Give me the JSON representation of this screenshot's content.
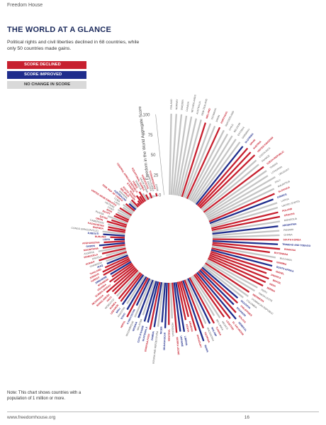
{
  "header": {
    "label": "Freedom House"
  },
  "title": "THE WORLD AT A GLANCE",
  "subtitle": "Political rights and civil liberties declined in 68 countries, while only 50 countries made gains.",
  "legend": {
    "declined": "SCORE DECLINED",
    "improved": "SCORE IMPROVED",
    "no_change": "NO CHANGE IN SCORE"
  },
  "colors": {
    "declined": "#c7202f",
    "improved": "#1f2d8c",
    "no_change": "#c4c4c4"
  },
  "note": "Note: This chart shows countries with a population of 1 million or more.",
  "footer": {
    "url": "www.freedomhouse.org",
    "page_number": "16"
  },
  "chart_data": {
    "type": "bar",
    "subtype": "radial",
    "ylabel": "Freedom in the World Aggregate Score",
    "ylim": [
      0,
      100
    ],
    "yticks": [
      "0",
      "25",
      "50",
      "75",
      "100"
    ],
    "categories": [
      "FINLAND",
      "NORWAY",
      "SWEDEN",
      "CANADA",
      "NETHERLANDS",
      "AUSTRALIA",
      "NEW ZEALAND",
      "IRELAND",
      "DENMARK",
      "JAPAN",
      "PORTUGAL",
      "SWITZERLAND",
      "CHILE",
      "BELGIUM",
      "ESTONIA",
      "GERMANY",
      "SLOVENIA",
      "SPAIN",
      "AUSTRIA",
      "UNITED KINGDOM",
      "COSTA RICA",
      "FRANCE",
      "CZECH REPUBLIC",
      "TAIWAN",
      "LITHUANIA",
      "URUGUAY",
      "ITALY",
      "MAURITIUS",
      "SLOVAKIA",
      "GREECE",
      "LATVIA",
      "UNITED STATES",
      "POLAND",
      "CROATIA",
      "MONGOLIA",
      "ARGENTINA",
      "PANAMA",
      "GHANA",
      "SOUTH KOREA",
      "TRINIDAD AND TOBAGO",
      "ROMANIA",
      "BOTSWANA",
      "BULGARIA",
      "NAMIBIA",
      "SOUTH AFRICA",
      "ISRAEL",
      "JAMAICA",
      "BRAZIL",
      "INDIA",
      "SERBIA",
      "PERU",
      "TIMOR-LESTE",
      "INDONESIA",
      "DOMINICAN REPUBLIC",
      "COLOMBIA",
      "MOLDOVA",
      "PHILIPPINES",
      "ECUADOR",
      "BOLIVIA",
      "SENEGAL",
      "EL SALVADOR",
      "LESOTHO",
      "MEXICO",
      "SRI LANKA",
      "TUNISIA",
      "MALAWI",
      "MACEDONIA",
      "GEORGIA",
      "BENIN",
      "PARAGUAY",
      "ARMENIA",
      "KENYA",
      "LIBERIA",
      "UKRAINE",
      "SIERRA LEONE",
      "HONDURAS",
      "TANZANIA",
      "MADAGASCAR",
      "NIGER",
      "BOSNIA AND HERZEGOVINA",
      "ZAMBIA",
      "BURKINA FASO",
      "GUATEMALA",
      "COTE D'IVOIRE",
      "MALAYSIA",
      "NIGERIA",
      "MOZAMBIQUE",
      "KYRGYZSTAN",
      "NEPAL",
      "TOGO",
      "PAKISTAN",
      "MALI",
      "LEBANON",
      "GUINEA",
      "MOROCCO",
      "HAITI",
      "BANGLADESH",
      "NICARAGUA",
      "GUINEA-BISSAU",
      "UGANDA",
      "MYANMAR",
      "ZIMBABWE",
      "TURKEY",
      "JORDAN",
      "THAILAND",
      "IRAQ",
      "CAMBODIA",
      "KUWAIT",
      "ANGOLA",
      "VENEZUELA",
      "ALGERIA",
      "MAURITANIA",
      "GABON",
      "AFGHANISTAN",
      "LIBYA",
      "BURUNDI",
      "DJIBOUTI",
      "CONGO (BRAZZAVILLE)",
      "RWANDA",
      "KAZAKHSTAN",
      "CAMEROON",
      "OMAN",
      "QATAR",
      "RUSSIA",
      "EGYPT",
      "IRAN",
      "CHAD",
      "VIETNAM",
      "UNITED ARAB EMIRATES",
      "LAOS",
      "CUBA",
      "DEM. REP. OF CONGO",
      "AZERBAIJAN",
      "BAHRAIN",
      "BELARUS",
      "SOUTH SUDAN",
      "SUDAN",
      "ETHIOPIA",
      "CENTRAL AFRICAN REPUBLIC",
      "YEMEN",
      "SOMALIA",
      "EQUATORIAL GUINEA",
      "SAUDI ARABIA",
      "UZBEKISTAN",
      "ERITREA",
      "NORTH KOREA",
      "TURKMENISTAN",
      "SYRIA"
    ],
    "values": [
      100,
      100,
      100,
      99,
      99,
      98,
      98,
      96,
      97,
      96,
      97,
      96,
      94,
      95,
      94,
      94,
      92,
      94,
      93,
      94,
      91,
      90,
      93,
      93,
      91,
      98,
      89,
      90,
      88,
      84,
      87,
      86,
      85,
      86,
      85,
      82,
      83,
      83,
      82,
      81,
      84,
      72,
      80,
      77,
      78,
      79,
      74,
      79,
      77,
      76,
      71,
      70,
      65,
      67,
      63,
      58,
      62,
      60,
      69,
      75,
      70,
      64,
      62,
      56,
      64,
      62,
      60,
      64,
      79,
      64,
      45,
      48,
      62,
      61,
      62,
      44,
      52,
      56,
      49,
      55,
      56,
      60,
      52,
      52,
      45,
      50,
      51,
      37,
      55,
      47,
      41,
      45,
      43,
      42,
      41,
      41,
      41,
      47,
      32,
      36,
      30,
      30,
      38,
      37,
      32,
      28,
      28,
      36,
      26,
      30,
      34,
      28,
      32,
      26,
      13,
      18,
      27,
      28,
      22,
      22,
      23,
      25,
      20,
      26,
      19,
      18,
      17,
      18,
      17,
      14,
      16,
      14,
      11,
      12,
      12,
      4,
      6,
      12,
      9,
      14,
      10,
      7,
      3,
      7,
      3,
      2,
      4,
      -1
    ],
    "change": [
      "n",
      "n",
      "n",
      "n",
      "n",
      "n",
      "n",
      "d",
      "n",
      "n",
      "d",
      "n",
      "n",
      "n",
      "n",
      "n",
      "i",
      "d",
      "d",
      "d",
      "n",
      "n",
      "d",
      "n",
      "n",
      "n",
      "n",
      "n",
      "d",
      "i",
      "n",
      "n",
      "d",
      "d",
      "n",
      "i",
      "n",
      "n",
      "d",
      "i",
      "d",
      "d",
      "n",
      "d",
      "i",
      "d",
      "d",
      "d",
      "d",
      "d",
      "n",
      "n",
      "d",
      "n",
      "n",
      "i",
      "d",
      "i",
      "d",
      "i",
      "d",
      "d",
      "n",
      "n",
      "d",
      "i",
      "n",
      "d",
      "i",
      "d",
      "d",
      "d",
      "i",
      "i",
      "d",
      "n",
      "d",
      "i",
      "i",
      "n",
      "i",
      "d",
      "i",
      "i",
      "n",
      "i",
      "n",
      "i",
      "d",
      "i",
      "n",
      "i",
      "d",
      "d",
      "n",
      "d",
      "d",
      "d",
      "d",
      "d",
      "d",
      "i",
      "d",
      "d",
      "d",
      "i",
      "n",
      "d",
      "n",
      "d",
      "n",
      "d",
      "i",
      "d",
      "i",
      "d",
      "i",
      "n",
      "d",
      "d",
      "n",
      "d",
      "d",
      "n",
      "d",
      "d",
      "n",
      "n",
      "d",
      "n",
      "n",
      "d",
      "i",
      "n",
      "d",
      "d",
      "d",
      "d",
      "d",
      "d",
      "n",
      "d",
      "n",
      "d",
      "n",
      "n",
      "d",
      "n"
    ]
  }
}
